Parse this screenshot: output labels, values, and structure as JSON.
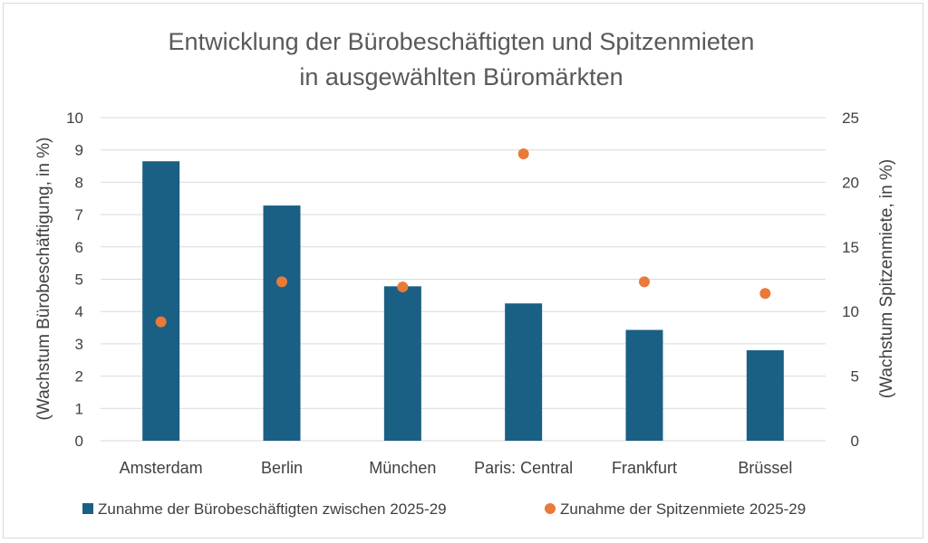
{
  "chart_data": {
    "type": "bar",
    "title": [
      "Entwicklung der Bürobeschäftigten und Spitzenmieten",
      "in ausgewählten Büromärkten"
    ],
    "categories": [
      "Amsterdam",
      "Berlin",
      "München",
      "Paris: Central",
      "Frankfurt",
      "Brüssel"
    ],
    "series": [
      {
        "name": "Zunahme der Bürobeschäftigten zwischen 2025-29",
        "kind": "bar",
        "axis": "left",
        "color": "#1a5f84",
        "values": [
          8.65,
          7.28,
          4.78,
          4.25,
          3.43,
          2.8
        ]
      },
      {
        "name": "Zunahme der Spitzenmiete 2025-29",
        "kind": "scatter",
        "axis": "right",
        "color": "#e97a3a",
        "values": [
          9.2,
          12.3,
          11.9,
          22.2,
          12.3,
          11.4
        ]
      }
    ],
    "ylabel_left": "(Wachstum Bürobeschäftigung, in %)",
    "ylabel_right": "(Wachstum Spitzenmiete, in %)",
    "ylim_left": [
      0,
      10
    ],
    "ylim_right": [
      0,
      25
    ],
    "yticks_left": [
      "0",
      "1",
      "2",
      "3",
      "4",
      "5",
      "6",
      "7",
      "8",
      "9",
      "10"
    ],
    "yticks_right": [
      "0",
      "5",
      "10",
      "15",
      "20",
      "25"
    ],
    "grid": true,
    "legend_position": "bottom"
  }
}
